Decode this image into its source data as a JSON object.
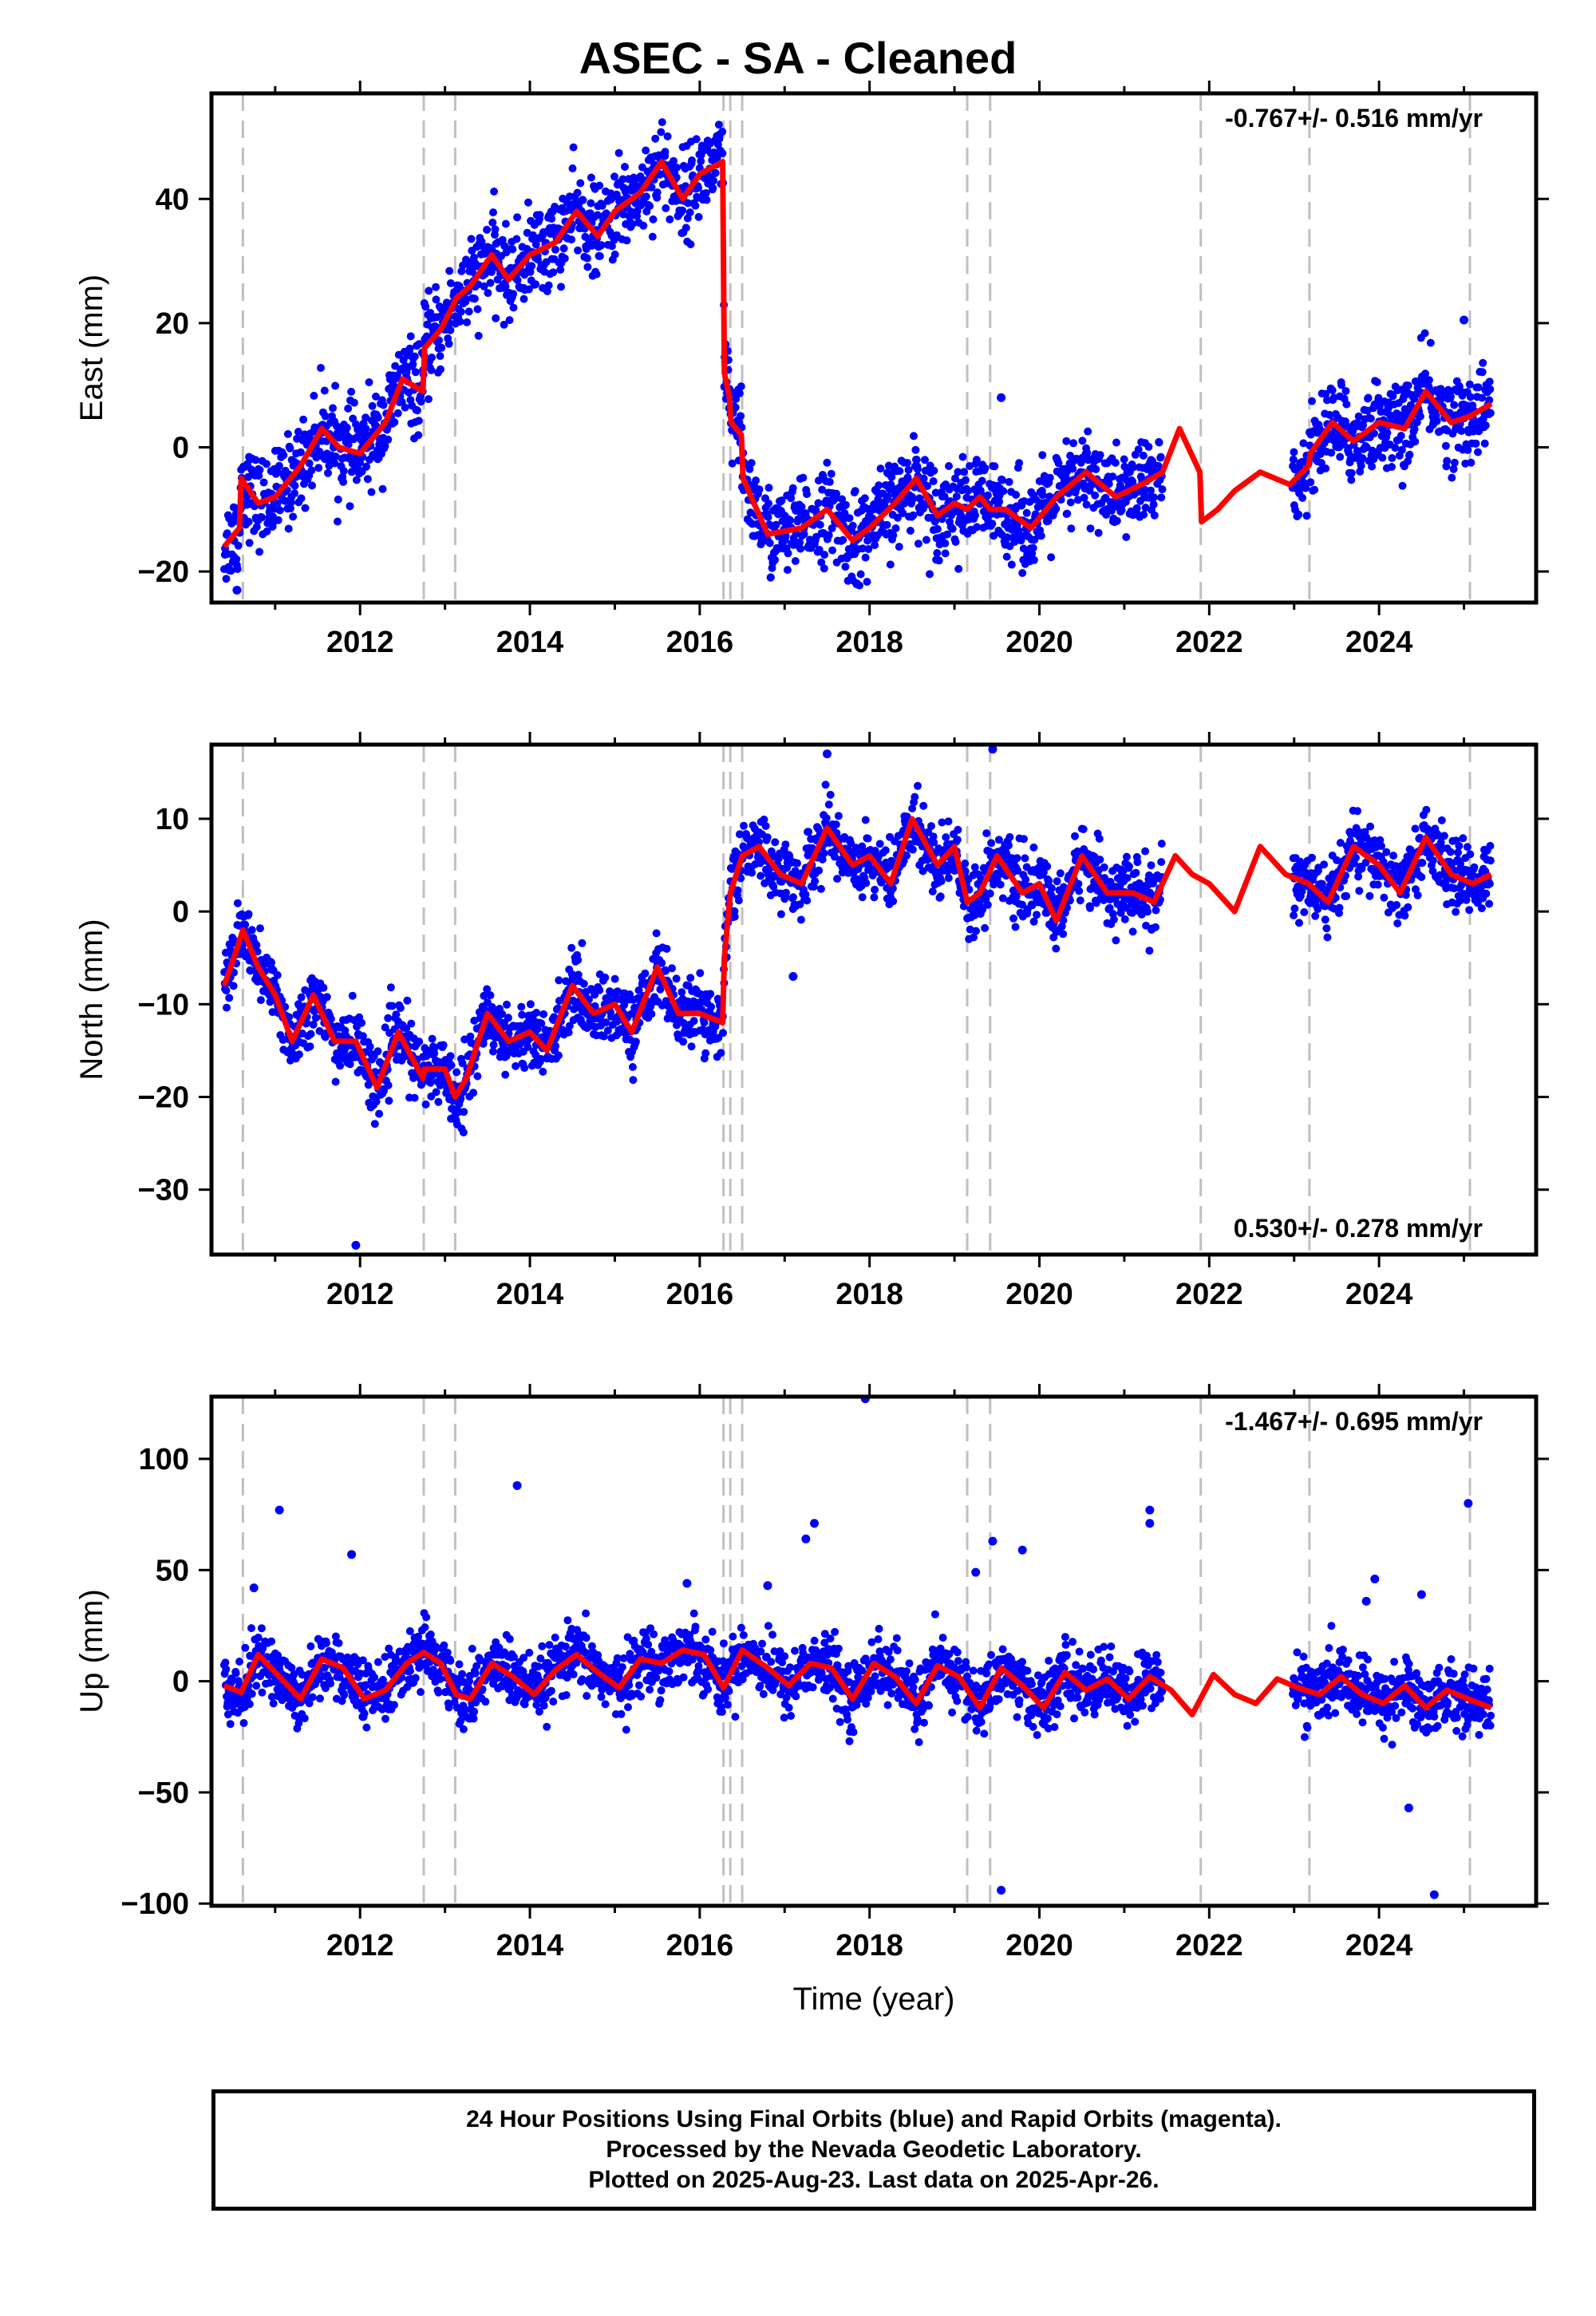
{
  "title": "ASEC  - SA - Cleaned",
  "colors": {
    "points": "#0000ff",
    "model": "#ff0000",
    "event_lines": "#c0c0c0",
    "frame": "#000000"
  },
  "x_axis": {
    "label": "Time (year)",
    "range": [
      2010.25,
      2025.85
    ],
    "ticks": [
      2012,
      2014,
      2016,
      2018,
      2020,
      2022,
      2024
    ],
    "tick_labels": [
      "2012",
      "2014",
      "2016",
      "2018",
      "2020",
      "2022",
      "2024"
    ]
  },
  "event_lines": [
    2010.62,
    2012.75,
    2013.12,
    2016.28,
    2016.36,
    2016.5,
    2019.15,
    2019.42,
    2021.9,
    2023.18,
    2025.07
  ],
  "footer": {
    "line1": "24 Hour Positions Using Final Orbits (blue) and Rapid Orbits (magenta).",
    "line2": "Processed by the Nevada Geodetic Laboratory.",
    "line3": "Plotted on 2025-Aug-23. Last data on 2025-Apr-26."
  },
  "chart_data": [
    {
      "type": "scatter",
      "component": "east",
      "ylabel": "East (mm)",
      "ylim": [
        -25,
        57
      ],
      "yticks": [
        -20,
        0,
        20,
        40
      ],
      "ytick_labels": [
        "−20",
        "0",
        "20",
        "40"
      ],
      "rate_text": "-0.767+/- 0.516 mm/yr",
      "rate_position": "top-right",
      "data_range": [
        2010.4,
        2025.32
      ],
      "gaps": [
        [
          2021.45,
          2022.98
        ]
      ],
      "noise": 3.5,
      "outliers": [
        {
          "x": 2010.55,
          "y": -23
        },
        {
          "x": 2017.85,
          "y": -22
        },
        {
          "x": 2025.0,
          "y": 20.5
        },
        {
          "x": 2019.55,
          "y": 8
        }
      ],
      "model": {
        "name": "model",
        "x": [
          2010.4,
          2010.58,
          2010.6,
          2010.8,
          2011.0,
          2011.3,
          2011.55,
          2011.75,
          2012.0,
          2012.3,
          2012.5,
          2012.74,
          2012.76,
          2012.95,
          2013.1,
          2013.13,
          2013.3,
          2013.55,
          2013.75,
          2014.0,
          2014.3,
          2014.55,
          2014.8,
          2015.0,
          2015.3,
          2015.55,
          2015.8,
          2016.0,
          2016.27,
          2016.29,
          2016.35,
          2016.37,
          2016.49,
          2016.51,
          2016.8,
          2017.2,
          2017.5,
          2017.8,
          2018.0,
          2018.3,
          2018.55,
          2018.8,
          2019.0,
          2019.15,
          2019.3,
          2019.42,
          2019.6,
          2019.9,
          2020.2,
          2020.55,
          2020.9,
          2021.2,
          2021.45,
          2021.65,
          2021.89,
          2021.91,
          2022.1,
          2022.3,
          2022.6,
          2022.95,
          2023.17,
          2023.19,
          2023.45,
          2023.7,
          2024.0,
          2024.3,
          2024.55,
          2024.85,
          2025.07,
          2025.32
        ],
        "y": [
          -16,
          -13,
          -5,
          -9,
          -8,
          -3,
          3,
          0,
          -1,
          4,
          11,
          9,
          16,
          19,
          23,
          24,
          26,
          31,
          27,
          31,
          33,
          38,
          34,
          38,
          41,
          46,
          40,
          44,
          46,
          12,
          8,
          4,
          2,
          -5,
          -14,
          -13,
          -10,
          -15,
          -13,
          -9,
          -5,
          -11,
          -9,
          -10,
          -8,
          -10,
          -10,
          -13,
          -8,
          -4,
          -8,
          -6,
          -4,
          3,
          -4,
          -12,
          -10,
          -7,
          -4,
          -6,
          -3,
          -1,
          4,
          1,
          4,
          3,
          9,
          4,
          5,
          7
        ]
      }
    },
    {
      "type": "scatter",
      "component": "north",
      "ylabel": "North (mm)",
      "ylim": [
        -37,
        18
      ],
      "yticks": [
        -30,
        -20,
        -10,
        0,
        10
      ],
      "ytick_labels": [
        "−30",
        "−20",
        "−10",
        "0",
        "10"
      ],
      "rate_text": "0.530+/- 0.278 mm/yr",
      "rate_position": "bottom-right",
      "data_range": [
        2010.4,
        2025.32
      ],
      "gaps": [
        [
          2021.45,
          2022.98
        ]
      ],
      "noise": 1.8,
      "outliers": [
        {
          "x": 2011.95,
          "y": -36
        },
        {
          "x": 2019.45,
          "y": 17.5
        },
        {
          "x": 2017.5,
          "y": 17
        },
        {
          "x": 2017.1,
          "y": -7
        }
      ],
      "model": {
        "name": "model",
        "x": [
          2010.4,
          2010.55,
          2010.62,
          2010.8,
          2011.0,
          2011.2,
          2011.45,
          2011.7,
          2011.95,
          2012.2,
          2012.45,
          2012.74,
          2012.76,
          2013.0,
          2013.12,
          2013.25,
          2013.5,
          2013.75,
          2014.0,
          2014.2,
          2014.5,
          2014.75,
          2015.0,
          2015.2,
          2015.5,
          2015.75,
          2016.0,
          2016.27,
          2016.29,
          2016.36,
          2016.5,
          2016.7,
          2016.95,
          2017.2,
          2017.5,
          2017.8,
          2018.0,
          2018.25,
          2018.5,
          2018.8,
          2019.0,
          2019.15,
          2019.3,
          2019.5,
          2019.8,
          2020.0,
          2020.2,
          2020.5,
          2020.8,
          2021.1,
          2021.35,
          2021.6,
          2021.8,
          2022.0,
          2022.3,
          2022.6,
          2022.9,
          2023.17,
          2023.4,
          2023.7,
          2024.0,
          2024.25,
          2024.55,
          2024.85,
          2025.1,
          2025.32
        ],
        "y": [
          -8,
          -4,
          -2,
          -6,
          -9,
          -14,
          -9,
          -14,
          -14,
          -19,
          -13,
          -18,
          -17,
          -17,
          -20,
          -18,
          -11,
          -14,
          -13,
          -15,
          -8,
          -11,
          -10,
          -13,
          -6,
          -11,
          -11,
          -12,
          -5,
          2,
          6,
          7,
          4,
          3,
          9,
          5,
          6,
          3,
          10,
          5,
          7,
          1,
          2,
          6,
          2,
          3,
          -1,
          6,
          2,
          2,
          1,
          6,
          4,
          3,
          0,
          7,
          4,
          3,
          1,
          7,
          5,
          2,
          8,
          4,
          3,
          4
        ]
      }
    },
    {
      "type": "scatter",
      "component": "up",
      "ylabel": "Up (mm)",
      "ylim": [
        -101,
        128
      ],
      "yticks": [
        -100,
        -50,
        0,
        50,
        100
      ],
      "ytick_labels": [
        "−100",
        "−50",
        "0",
        "50",
        "100"
      ],
      "rate_text": "-1.467+/- 0.695 mm/yr",
      "rate_position": "top-right",
      "data_range": [
        2010.4,
        2025.32
      ],
      "gaps": [
        [
          2021.45,
          2022.98
        ]
      ],
      "noise": 7,
      "outliers": [
        {
          "x": 2011.05,
          "y": 77
        },
        {
          "x": 2011.9,
          "y": 57
        },
        {
          "x": 2013.85,
          "y": 88
        },
        {
          "x": 2017.35,
          "y": 71
        },
        {
          "x": 2017.25,
          "y": 64
        },
        {
          "x": 2017.95,
          "y": 127
        },
        {
          "x": 2019.25,
          "y": 49
        },
        {
          "x": 2019.45,
          "y": 63
        },
        {
          "x": 2019.8,
          "y": 59
        },
        {
          "x": 2021.3,
          "y": 77
        },
        {
          "x": 2021.3,
          "y": 71
        },
        {
          "x": 2019.55,
          "y": -94
        },
        {
          "x": 2023.85,
          "y": 36
        },
        {
          "x": 2023.95,
          "y": 46
        },
        {
          "x": 2024.35,
          "y": -57
        },
        {
          "x": 2024.5,
          "y": 39
        },
        {
          "x": 2024.65,
          "y": -96
        },
        {
          "x": 2025.05,
          "y": 80
        },
        {
          "x": 2016.8,
          "y": 43
        },
        {
          "x": 2015.85,
          "y": 44
        },
        {
          "x": 2010.75,
          "y": 42
        }
      ],
      "model": {
        "name": "model",
        "x": [
          2010.4,
          2010.6,
          2010.8,
          2011.05,
          2011.3,
          2011.55,
          2011.8,
          2012.05,
          2012.3,
          2012.55,
          2012.75,
          2012.95,
          2013.12,
          2013.13,
          2013.3,
          2013.55,
          2013.8,
          2014.05,
          2014.3,
          2014.55,
          2014.8,
          2015.05,
          2015.3,
          2015.55,
          2015.8,
          2016.05,
          2016.28,
          2016.5,
          2016.8,
          2017.05,
          2017.3,
          2017.55,
          2017.8,
          2018.05,
          2018.3,
          2018.55,
          2018.8,
          2019.05,
          2019.3,
          2019.55,
          2019.8,
          2020.05,
          2020.3,
          2020.55,
          2020.8,
          2021.05,
          2021.3,
          2021.55,
          2021.8,
          2022.05,
          2022.3,
          2022.55,
          2022.8,
          2023.05,
          2023.3,
          2023.55,
          2023.8,
          2024.05,
          2024.3,
          2024.55,
          2024.8,
          2025.05,
          2025.32
        ],
        "y": [
          -2,
          -5,
          12,
          2,
          -8,
          10,
          6,
          -8,
          -4,
          8,
          13,
          8,
          -5,
          -6,
          -8,
          8,
          2,
          -6,
          5,
          12,
          4,
          -3,
          10,
          8,
          14,
          12,
          -3,
          14,
          6,
          -2,
          8,
          6,
          -8,
          8,
          2,
          -10,
          7,
          2,
          -12,
          6,
          -2,
          -12,
          4,
          -4,
          1,
          -8,
          2,
          -4,
          -15,
          3,
          -6,
          -10,
          1,
          -3,
          -6,
          2,
          -6,
          -10,
          -2,
          -12,
          -4,
          -8,
          -12
        ]
      }
    }
  ]
}
